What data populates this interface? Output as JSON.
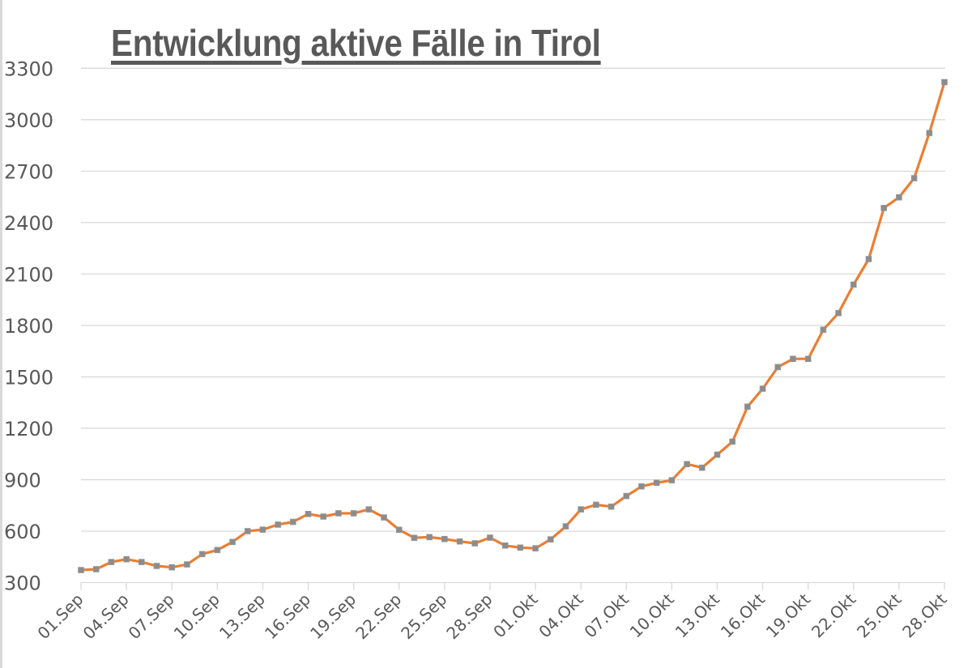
{
  "chart_data": {
    "type": "line",
    "title": "Entwicklung aktive Fälle in Tirol",
    "xlabel": "",
    "ylabel": "",
    "ylim": [
      300,
      3300
    ],
    "yticks": [
      300,
      600,
      900,
      1200,
      1500,
      1800,
      2100,
      2400,
      2700,
      3000,
      3300
    ],
    "grid": true,
    "legend": "none",
    "line_color": "#ED7D31",
    "marker_color": "#8C8C8C",
    "x": [
      "01.Sep",
      "02.Sep",
      "03.Sep",
      "04.Sep",
      "05.Sep",
      "06.Sep",
      "07.Sep",
      "08.Sep",
      "09.Sep",
      "10.Sep",
      "11.Sep",
      "12.Sep",
      "13.Sep",
      "14.Sep",
      "15.Sep",
      "16.Sep",
      "17.Sep",
      "18.Sep",
      "19.Sep",
      "20.Sep",
      "21.Sep",
      "22.Sep",
      "23.Sep",
      "24.Sep",
      "25.Sep",
      "26.Sep",
      "27.Sep",
      "28.Sep",
      "29.Sep",
      "30.Sep",
      "01.Okt",
      "02.Okt",
      "03.Okt",
      "04.Okt",
      "05.Okt",
      "06.Okt",
      "07.Okt",
      "08.Okt",
      "09.Okt",
      "10.Okt",
      "11.Okt",
      "12.Okt",
      "13.Okt",
      "14.Okt",
      "15.Okt",
      "16.Okt",
      "17.Okt",
      "18.Okt",
      "19.Okt",
      "20.Okt",
      "21.Okt",
      "22.Okt",
      "23.Okt",
      "24.Okt",
      "25.Okt",
      "26.Okt",
      "27.Okt",
      "28.Okt"
    ],
    "xtick_labels": [
      "01.Sep",
      "04.Sep",
      "07.Sep",
      "10.Sep",
      "13.Sep",
      "16.Sep",
      "19.Sep",
      "22.Sep",
      "25.Sep",
      "28.Sep",
      "01.Okt",
      "04.Okt",
      "07.Okt",
      "10.Okt",
      "13.Okt",
      "16.Okt",
      "19.Okt",
      "22.Okt",
      "25.Okt",
      "28.Okt"
    ],
    "series": [
      {
        "name": "aktive Fälle",
        "values": [
          373,
          378,
          420,
          436,
          420,
          397,
          389,
          406,
          466,
          490,
          537,
          600,
          609,
          638,
          654,
          700,
          685,
          704,
          704,
          727,
          680,
          608,
          561,
          565,
          554,
          540,
          529,
          562,
          516,
          504,
          500,
          552,
          628,
          727,
          754,
          743,
          805,
          861,
          882,
          897,
          991,
          970,
          1046,
          1122,
          1326,
          1431,
          1557,
          1605,
          1605,
          1775,
          1872,
          2038,
          2187,
          2485,
          2547,
          2659,
          2922,
          3219
        ]
      }
    ]
  }
}
